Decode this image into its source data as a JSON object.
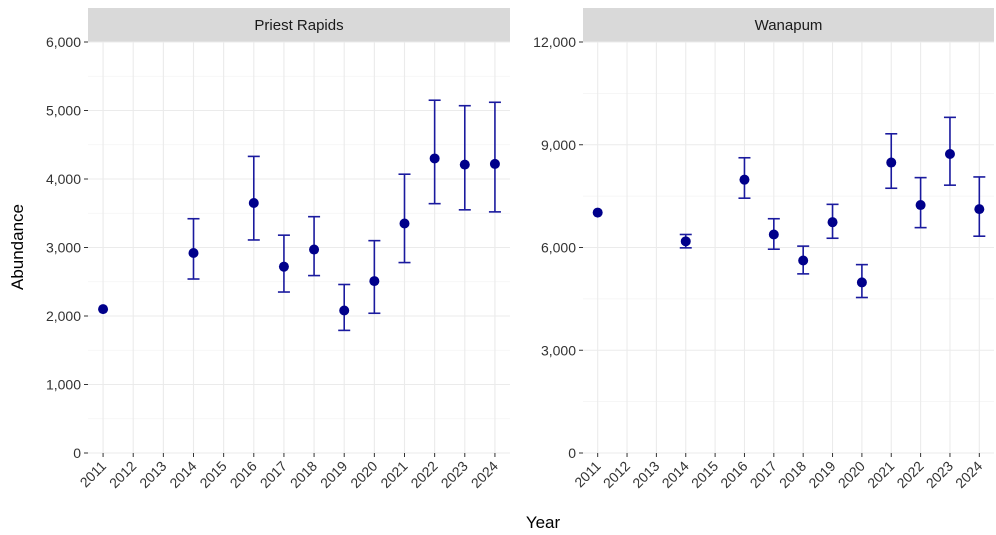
{
  "chart_data": {
    "type": "scatter",
    "xlabel": "Year",
    "ylabel": "Abundance",
    "grid": true,
    "colors": {
      "point": "#00008B",
      "errorbar": "#1a1a9e",
      "grid": "#ebebeb",
      "strip": "#d9d9d9"
    },
    "x_ticks": [
      "2011",
      "2012",
      "2013",
      "2014",
      "2015",
      "2016",
      "2017",
      "2018",
      "2019",
      "2020",
      "2021",
      "2022",
      "2023",
      "2024"
    ],
    "panels": [
      {
        "title": "Priest Rapids",
        "ylim": [
          0,
          6000
        ],
        "y_ticks": [
          0,
          1000,
          2000,
          3000,
          4000,
          5000,
          6000
        ],
        "y_tick_labels": [
          "0",
          "1,000",
          "2,000",
          "3,000",
          "4,000",
          "5,000",
          "6,000"
        ],
        "points": [
          {
            "x": "2011",
            "y": 2100
          },
          {
            "x": "2014",
            "y": 2920,
            "lo": 2540,
            "hi": 3420
          },
          {
            "x": "2016",
            "y": 3650,
            "lo": 3110,
            "hi": 4330
          },
          {
            "x": "2017",
            "y": 2720,
            "lo": 2350,
            "hi": 3180
          },
          {
            "x": "2018",
            "y": 2970,
            "lo": 2590,
            "hi": 3450
          },
          {
            "x": "2019",
            "y": 2080,
            "lo": 1790,
            "hi": 2460
          },
          {
            "x": "2020",
            "y": 2510,
            "lo": 2040,
            "hi": 3100
          },
          {
            "x": "2021",
            "y": 3350,
            "lo": 2780,
            "hi": 4070
          },
          {
            "x": "2022",
            "y": 4300,
            "lo": 3640,
            "hi": 5150
          },
          {
            "x": "2023",
            "y": 4210,
            "lo": 3550,
            "hi": 5070
          },
          {
            "x": "2024",
            "y": 4220,
            "lo": 3520,
            "hi": 5120
          }
        ]
      },
      {
        "title": "Wanapum",
        "ylim": [
          0,
          12000
        ],
        "y_ticks": [
          0,
          3000,
          6000,
          9000,
          12000
        ],
        "y_tick_labels": [
          "0",
          "3,000",
          "6,000",
          "9,000",
          "12,000"
        ],
        "points": [
          {
            "x": "2011",
            "y": 7020
          },
          {
            "x": "2014",
            "y": 6180,
            "lo": 5990,
            "hi": 6380
          },
          {
            "x": "2016",
            "y": 7980,
            "lo": 7440,
            "hi": 8620
          },
          {
            "x": "2017",
            "y": 6380,
            "lo": 5950,
            "hi": 6840
          },
          {
            "x": "2018",
            "y": 5620,
            "lo": 5230,
            "hi": 6040
          },
          {
            "x": "2019",
            "y": 6740,
            "lo": 6270,
            "hi": 7260
          },
          {
            "x": "2020",
            "y": 4980,
            "lo": 4540,
            "hi": 5500
          },
          {
            "x": "2021",
            "y": 8480,
            "lo": 7730,
            "hi": 9320
          },
          {
            "x": "2022",
            "y": 7240,
            "lo": 6580,
            "hi": 8040
          },
          {
            "x": "2023",
            "y": 8730,
            "lo": 7820,
            "hi": 9800
          },
          {
            "x": "2024",
            "y": 7120,
            "lo": 6330,
            "hi": 8060
          }
        ]
      }
    ]
  }
}
